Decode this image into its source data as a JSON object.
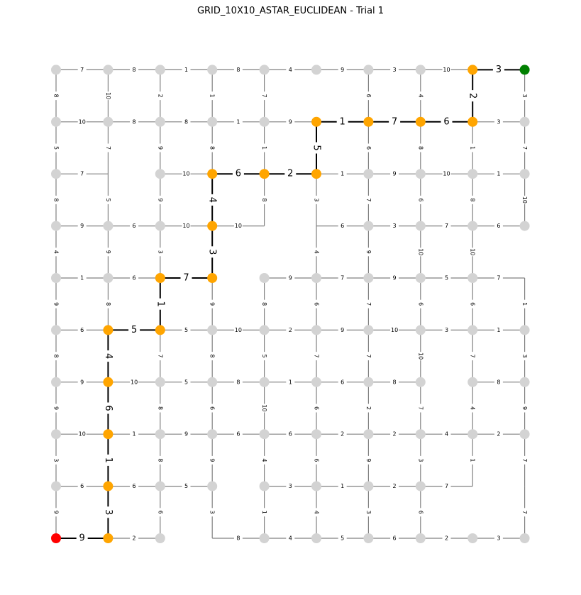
{
  "title": "GRID_10X10_ASTAR_EUCLIDEAN - Trial 1",
  "grid": {
    "cols": 10,
    "rows": 10
  },
  "colors": {
    "node": "#d3d3d3",
    "path": "#ffa500",
    "start": "#ff0000",
    "goal": "#008000",
    "edge": "#808080",
    "path_edge": "#000000"
  },
  "start": [
    0,
    0
  ],
  "goal": [
    9,
    9
  ],
  "missing_nodes": [
    [
      1,
      7
    ],
    [
      4,
      6
    ],
    [
      5,
      6
    ],
    [
      9,
      5
    ],
    [
      3,
      0
    ],
    [
      8,
      1
    ],
    [
      9,
      1
    ]
  ],
  "path": [
    [
      0,
      0
    ],
    [
      1,
      0
    ],
    [
      1,
      1
    ],
    [
      1,
      2
    ],
    [
      1,
      3
    ],
    [
      1,
      4
    ],
    [
      2,
      4
    ],
    [
      2,
      5
    ],
    [
      3,
      5
    ],
    [
      3,
      6
    ],
    [
      3,
      7
    ],
    [
      4,
      7
    ],
    [
      5,
      7
    ],
    [
      5,
      8
    ],
    [
      6,
      8
    ],
    [
      7,
      8
    ],
    [
      8,
      8
    ],
    [
      8,
      9
    ],
    [
      9,
      9
    ]
  ],
  "h_edges": [
    {
      "y": 9,
      "x": 0,
      "w": 7
    },
    {
      "y": 9,
      "x": 1,
      "w": 8
    },
    {
      "y": 9,
      "x": 2,
      "w": 1
    },
    {
      "y": 9,
      "x": 3,
      "w": 8
    },
    {
      "y": 9,
      "x": 4,
      "w": 4
    },
    {
      "y": 9,
      "x": 5,
      "w": 9
    },
    {
      "y": 9,
      "x": 6,
      "w": 3
    },
    {
      "y": 9,
      "x": 7,
      "w": 10
    },
    {
      "y": 9,
      "x": 8,
      "w": 3
    },
    {
      "y": 8,
      "x": 0,
      "w": 10
    },
    {
      "y": 8,
      "x": 1,
      "w": 8
    },
    {
      "y": 8,
      "x": 2,
      "w": 8
    },
    {
      "y": 8,
      "x": 3,
      "w": 1
    },
    {
      "y": 8,
      "x": 4,
      "w": 9
    },
    {
      "y": 8,
      "x": 5,
      "w": 1
    },
    {
      "y": 8,
      "x": 6,
      "w": 7
    },
    {
      "y": 8,
      "x": 7,
      "w": 6
    },
    {
      "y": 8,
      "x": 8,
      "w": 3
    },
    {
      "y": 7,
      "x": 0,
      "w": 7
    },
    {
      "y": 7,
      "x": 2,
      "w": 10
    },
    {
      "y": 7,
      "x": 3,
      "w": 6
    },
    {
      "y": 7,
      "x": 4,
      "w": 2
    },
    {
      "y": 7,
      "x": 5,
      "w": 1
    },
    {
      "y": 7,
      "x": 6,
      "w": 9
    },
    {
      "y": 7,
      "x": 7,
      "w": 10
    },
    {
      "y": 7,
      "x": 8,
      "w": 1
    },
    {
      "y": 6,
      "x": 0,
      "w": 9
    },
    {
      "y": 6,
      "x": 1,
      "w": 6
    },
    {
      "y": 6,
      "x": 2,
      "w": 10
    },
    {
      "y": 6,
      "x": 3,
      "w": 10
    },
    {
      "y": 6,
      "x": 5,
      "w": 6
    },
    {
      "y": 6,
      "x": 6,
      "w": 3
    },
    {
      "y": 6,
      "x": 7,
      "w": 7
    },
    {
      "y": 6,
      "x": 8,
      "w": 6
    },
    {
      "y": 5,
      "x": 0,
      "w": 1
    },
    {
      "y": 5,
      "x": 1,
      "w": 6
    },
    {
      "y": 5,
      "x": 2,
      "w": 7
    },
    {
      "y": 5,
      "x": 4,
      "w": 9
    },
    {
      "y": 5,
      "x": 5,
      "w": 7
    },
    {
      "y": 5,
      "x": 6,
      "w": 9
    },
    {
      "y": 5,
      "x": 7,
      "w": 5
    },
    {
      "y": 5,
      "x": 8,
      "w": 7
    },
    {
      "y": 4,
      "x": 0,
      "w": 6
    },
    {
      "y": 4,
      "x": 1,
      "w": 5
    },
    {
      "y": 4,
      "x": 2,
      "w": 5
    },
    {
      "y": 4,
      "x": 3,
      "w": 10
    },
    {
      "y": 4,
      "x": 4,
      "w": 2
    },
    {
      "y": 4,
      "x": 5,
      "w": 9
    },
    {
      "y": 4,
      "x": 6,
      "w": 10
    },
    {
      "y": 4,
      "x": 7,
      "w": 3
    },
    {
      "y": 4,
      "x": 8,
      "w": 1
    },
    {
      "y": 3,
      "x": 0,
      "w": 9
    },
    {
      "y": 3,
      "x": 1,
      "w": 10
    },
    {
      "y": 3,
      "x": 2,
      "w": 5
    },
    {
      "y": 3,
      "x": 3,
      "w": 8
    },
    {
      "y": 3,
      "x": 4,
      "w": 1
    },
    {
      "y": 3,
      "x": 5,
      "w": 6
    },
    {
      "y": 3,
      "x": 6,
      "w": 8
    },
    {
      "y": 3,
      "x": 8,
      "w": 8
    },
    {
      "y": 2,
      "x": 0,
      "w": 10
    },
    {
      "y": 2,
      "x": 1,
      "w": 1
    },
    {
      "y": 2,
      "x": 2,
      "w": 9
    },
    {
      "y": 2,
      "x": 3,
      "w": 6
    },
    {
      "y": 2,
      "x": 4,
      "w": 6
    },
    {
      "y": 2,
      "x": 5,
      "w": 2
    },
    {
      "y": 2,
      "x": 6,
      "w": 2
    },
    {
      "y": 2,
      "x": 7,
      "w": 4
    },
    {
      "y": 2,
      "x": 8,
      "w": 2
    },
    {
      "y": 1,
      "x": 0,
      "w": 6
    },
    {
      "y": 1,
      "x": 1,
      "w": 6
    },
    {
      "y": 1,
      "x": 2,
      "w": 5
    },
    {
      "y": 1,
      "x": 4,
      "w": 3
    },
    {
      "y": 1,
      "x": 5,
      "w": 1
    },
    {
      "y": 1,
      "x": 6,
      "w": 2
    },
    {
      "y": 1,
      "x": 7,
      "w": 7
    },
    {
      "y": 0,
      "x": 0,
      "w": 9
    },
    {
      "y": 0,
      "x": 1,
      "w": 2
    },
    {
      "y": 0,
      "x": 3,
      "w": 8
    },
    {
      "y": 0,
      "x": 4,
      "w": 4
    },
    {
      "y": 0,
      "x": 5,
      "w": 5
    },
    {
      "y": 0,
      "x": 6,
      "w": 6
    },
    {
      "y": 0,
      "x": 7,
      "w": 2
    },
    {
      "y": 0,
      "x": 8,
      "w": 3
    }
  ],
  "v_edges": [
    {
      "x": 0,
      "y": 8,
      "w": 8
    },
    {
      "x": 0,
      "y": 7,
      "w": 5
    },
    {
      "x": 0,
      "y": 6,
      "w": 8
    },
    {
      "x": 0,
      "y": 5,
      "w": 4
    },
    {
      "x": 0,
      "y": 4,
      "w": 9
    },
    {
      "x": 0,
      "y": 3,
      "w": 8
    },
    {
      "x": 0,
      "y": 2,
      "w": 9
    },
    {
      "x": 0,
      "y": 1,
      "w": 3
    },
    {
      "x": 0,
      "y": 0,
      "w": 9
    },
    {
      "x": 1,
      "y": 8,
      "w": 10
    },
    {
      "x": 1,
      "y": 7,
      "w": 7
    },
    {
      "x": 1,
      "y": 6,
      "w": 5
    },
    {
      "x": 1,
      "y": 5,
      "w": 9
    },
    {
      "x": 1,
      "y": 4,
      "w": 8
    },
    {
      "x": 1,
      "y": 3,
      "w": 4
    },
    {
      "x": 1,
      "y": 2,
      "w": 6
    },
    {
      "x": 1,
      "y": 1,
      "w": 1
    },
    {
      "x": 1,
      "y": 0,
      "w": 3
    },
    {
      "x": 2,
      "y": 8,
      "w": 2
    },
    {
      "x": 2,
      "y": 7,
      "w": 9
    },
    {
      "x": 2,
      "y": 6,
      "w": 9
    },
    {
      "x": 2,
      "y": 5,
      "w": 3
    },
    {
      "x": 2,
      "y": 4,
      "w": 1
    },
    {
      "x": 2,
      "y": 3,
      "w": 7
    },
    {
      "x": 2,
      "y": 2,
      "w": 8
    },
    {
      "x": 2,
      "y": 1,
      "w": 8
    },
    {
      "x": 2,
      "y": 0,
      "w": 6
    },
    {
      "x": 3,
      "y": 8,
      "w": 1
    },
    {
      "x": 3,
      "y": 7,
      "w": 8
    },
    {
      "x": 3,
      "y": 6,
      "w": 4
    },
    {
      "x": 3,
      "y": 5,
      "w": 3
    },
    {
      "x": 3,
      "y": 4,
      "w": 9
    },
    {
      "x": 3,
      "y": 3,
      "w": 8
    },
    {
      "x": 3,
      "y": 2,
      "w": 6
    },
    {
      "x": 3,
      "y": 1,
      "w": 9
    },
    {
      "x": 3,
      "y": 0,
      "w": 3
    },
    {
      "x": 4,
      "y": 8,
      "w": 7
    },
    {
      "x": 4,
      "y": 7,
      "w": 1
    },
    {
      "x": 4,
      "y": 6,
      "w": 8
    },
    {
      "x": 4,
      "y": 4,
      "w": 8
    },
    {
      "x": 4,
      "y": 3,
      "w": 5
    },
    {
      "x": 4,
      "y": 2,
      "w": 10
    },
    {
      "x": 4,
      "y": 1,
      "w": 4
    },
    {
      "x": 4,
      "y": 0,
      "w": 1
    },
    {
      "x": 5,
      "y": 7,
      "w": 5
    },
    {
      "x": 5,
      "y": 6,
      "w": 3
    },
    {
      "x": 5,
      "y": 5,
      "w": 4
    },
    {
      "x": 5,
      "y": 4,
      "w": 6
    },
    {
      "x": 5,
      "y": 3,
      "w": 7
    },
    {
      "x": 5,
      "y": 2,
      "w": 6
    },
    {
      "x": 5,
      "y": 1,
      "w": 6
    },
    {
      "x": 5,
      "y": 0,
      "w": 4
    },
    {
      "x": 6,
      "y": 8,
      "w": 6
    },
    {
      "x": 6,
      "y": 7,
      "w": 6
    },
    {
      "x": 6,
      "y": 6,
      "w": 7
    },
    {
      "x": 6,
      "y": 5,
      "w": 9
    },
    {
      "x": 6,
      "y": 4,
      "w": 7
    },
    {
      "x": 6,
      "y": 3,
      "w": 7
    },
    {
      "x": 6,
      "y": 2,
      "w": 2
    },
    {
      "x": 6,
      "y": 1,
      "w": 9
    },
    {
      "x": 6,
      "y": 0,
      "w": 3
    },
    {
      "x": 7,
      "y": 8,
      "w": 4
    },
    {
      "x": 7,
      "y": 7,
      "w": 8
    },
    {
      "x": 7,
      "y": 6,
      "w": 6
    },
    {
      "x": 7,
      "y": 5,
      "w": 10
    },
    {
      "x": 7,
      "y": 4,
      "w": 6
    },
    {
      "x": 7,
      "y": 3,
      "w": 10
    },
    {
      "x": 7,
      "y": 2,
      "w": 7
    },
    {
      "x": 7,
      "y": 1,
      "w": 3
    },
    {
      "x": 7,
      "y": 0,
      "w": 6
    },
    {
      "x": 8,
      "y": 8,
      "w": 2
    },
    {
      "x": 8,
      "y": 7,
      "w": 1
    },
    {
      "x": 8,
      "y": 6,
      "w": 8
    },
    {
      "x": 8,
      "y": 5,
      "w": 10
    },
    {
      "x": 8,
      "y": 4,
      "w": 6
    },
    {
      "x": 8,
      "y": 3,
      "w": 7
    },
    {
      "x": 8,
      "y": 2,
      "w": 4
    },
    {
      "x": 8,
      "y": 1,
      "w": 1
    },
    {
      "x": 9,
      "y": 8,
      "w": 3
    },
    {
      "x": 9,
      "y": 7,
      "w": 7
    },
    {
      "x": 9,
      "y": 6,
      "w": 10
    },
    {
      "x": 9,
      "y": 4,
      "w": 1
    },
    {
      "x": 9,
      "y": 3,
      "w": 3
    },
    {
      "x": 9,
      "y": 2,
      "w": 9
    },
    {
      "x": 9,
      "y": 1,
      "w": 7
    },
    {
      "x": 9,
      "y": 0,
      "w": 7
    }
  ]
}
